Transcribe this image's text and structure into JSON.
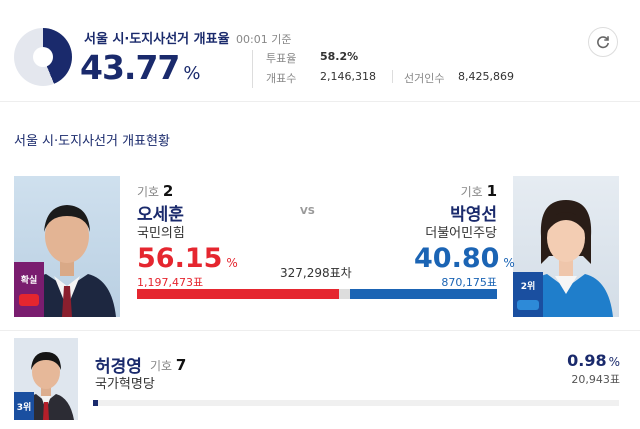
{
  "header": {
    "title": "서울 시·도지사선거 개표율",
    "time": "00:01 기준",
    "count_rate": "43.77",
    "count_rate_unit": "%",
    "count_rate_value": 43.77,
    "turnout_label": "투표율",
    "turnout_value": "58.2%",
    "counted_label": "개표수",
    "counted_value": "2,146,318",
    "electorate_label": "선거인수",
    "electorate_value": "8,425,869"
  },
  "section_title": "서울 시·도지사선거 개표현황",
  "vs_label": "VS",
  "diff_text": "327,298표차",
  "colors": {
    "navy": "#1a2a6c",
    "red": "#e5262f",
    "blue": "#1b64b4"
  },
  "icons": {
    "refresh": "refresh-icon"
  },
  "candidates": [
    {
      "no_label": "기호",
      "no": "2",
      "name": "오세훈",
      "party": "국민의힘",
      "pct": "56.15",
      "pct_unit": "%",
      "pct_value": 56.15,
      "votes": "1,197,473표",
      "badge": "확실",
      "party_logo_text": "국민의힘"
    },
    {
      "no_label": "기호",
      "no": "1",
      "name": "박영선",
      "party": "더불어민주당",
      "pct": "40.80",
      "pct_unit": "%",
      "pct_value": 40.8,
      "votes": "870,175표",
      "badge": "2위",
      "party_logo_text": "더불어민주당"
    },
    {
      "no_label": "기호",
      "no": "7",
      "name": "허경영",
      "party": "국가혁명당",
      "pct": "0.98",
      "pct_unit": "%",
      "pct_value": 0.98,
      "votes": "20,943표",
      "badge": "3위"
    }
  ]
}
